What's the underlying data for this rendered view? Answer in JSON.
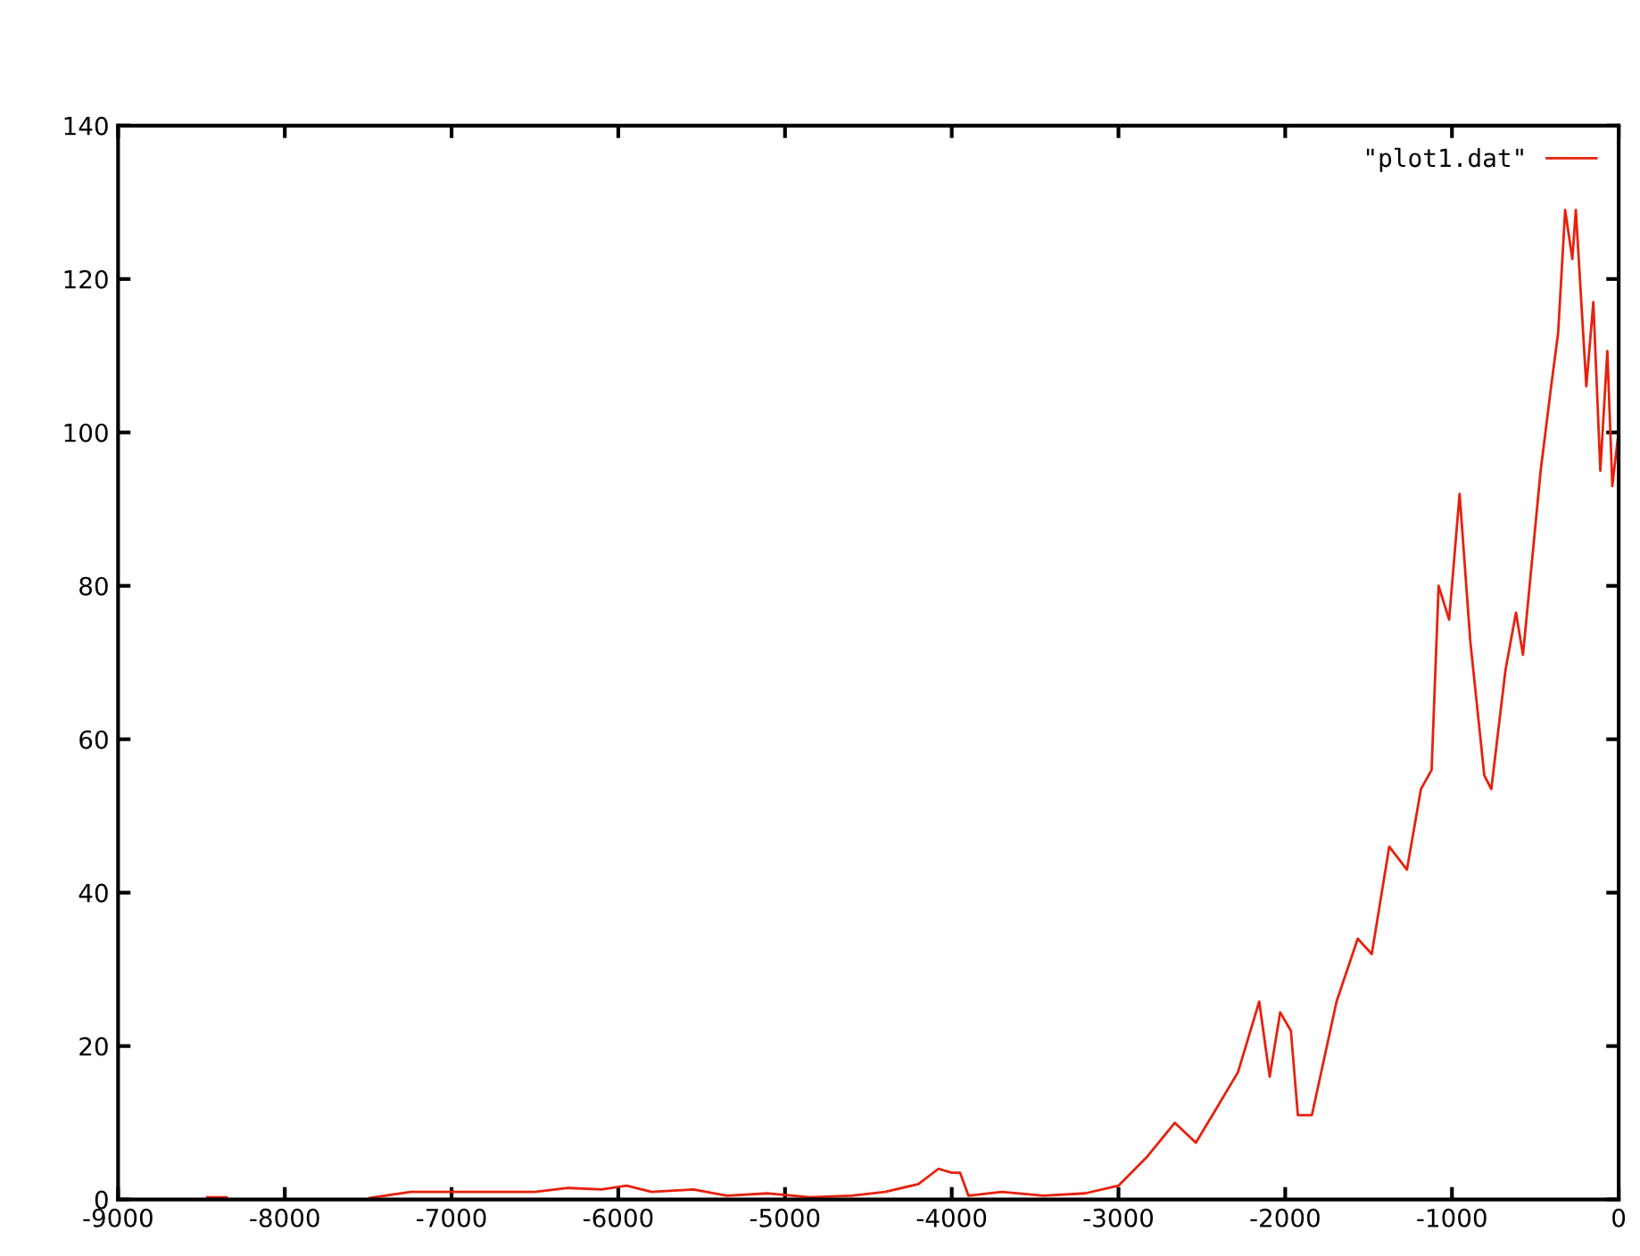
{
  "chart_data": {
    "type": "line",
    "legend": "top right",
    "xlim": [
      -9000,
      0
    ],
    "ylim": [
      0,
      140
    ],
    "xticks": [
      -9000,
      -8000,
      -7000,
      -6000,
      -5000,
      -4000,
      -3000,
      -2000,
      -1000,
      0
    ],
    "yticks": [
      0,
      20,
      40,
      60,
      80,
      100,
      120,
      140
    ],
    "series": [
      {
        "name": "\"plot1.dat\"",
        "color": "#e8200c",
        "x": [
          -8465,
          -8350,
          -8300,
          -7490,
          -7245,
          -6900,
          -6500,
          -6300,
          -6100,
          -5950,
          -5800,
          -5550,
          -5350,
          -5100,
          -4850,
          -4600,
          -4400,
          -4200,
          -4080,
          -4000,
          -3950,
          -3900,
          -3700,
          -3450,
          -3200,
          -3000,
          -2831,
          -2662,
          -2536,
          -2409,
          -2283,
          -2156,
          -2093,
          -2030,
          -1966,
          -1924,
          -1840,
          -1692,
          -1565,
          -1481,
          -1376,
          -1270,
          -1186,
          -1122,
          -1080,
          -1017,
          -954,
          -890,
          -806,
          -764,
          -679,
          -616,
          -574,
          -468,
          -405,
          -363,
          -321,
          -278,
          -257,
          -194,
          -152,
          -110,
          -68,
          -38,
          -4
        ],
        "values": [
          0.3,
          0.3,
          null,
          0.2,
          1,
          1,
          1,
          1.5,
          1.3,
          1.8,
          1,
          1.3,
          0.5,
          0.8,
          0.3,
          0.5,
          1,
          2,
          4,
          3.5,
          3.5,
          0.5,
          1,
          0.5,
          0.8,
          1.8,
          5.5,
          10,
          7.4,
          12,
          16.6,
          25.8,
          16,
          24.4,
          22,
          11,
          11,
          25.8,
          34,
          32,
          46,
          43,
          53.5,
          56,
          80,
          75.6,
          92,
          72.8,
          55.3,
          53.5,
          69,
          76.5,
          71,
          95,
          106,
          113,
          129,
          122.6,
          129,
          106,
          117,
          95,
          110.6,
          93,
          99.5
        ]
      }
    ]
  }
}
